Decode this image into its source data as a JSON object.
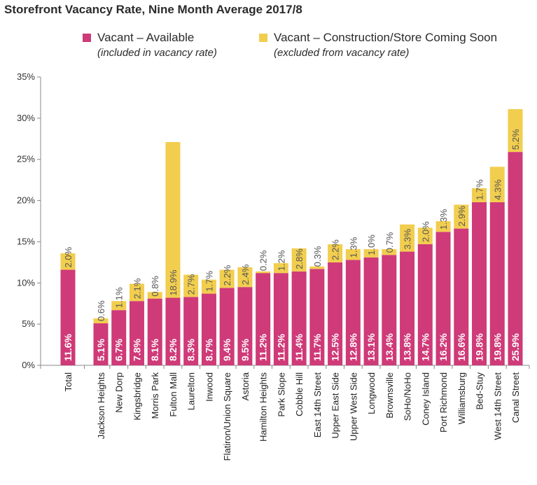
{
  "chart_data": {
    "type": "bar",
    "stacked": true,
    "orientation": "vertical",
    "title": "Storefront Vacancy Rate, Nine Month Average 2017/8",
    "categories": [
      "Total",
      "Jackson Heights",
      "New Dorp",
      "Kingsbridge",
      "Morris Park",
      "Fulton Mall",
      "Laurelton",
      "Inwood",
      "Flatiron/Union Square",
      "Astoria",
      "Hamilton Heights",
      "Park Slope",
      "Cobble Hill",
      "East 14th Street",
      "Upper East Side",
      "Upper West Side",
      "Longwood",
      "Brownsville",
      "SoHo/NoHo",
      "Coney Island",
      "Port Richmond",
      "Williamsburg",
      "Bed-Stuy",
      "West 14th Street",
      "Canal Street"
    ],
    "series": [
      {
        "name": "Vacant – Available",
        "note": "(included in vacancy rate)",
        "color": "#cf3a78",
        "values": [
          11.6,
          5.1,
          6.7,
          7.8,
          8.1,
          8.2,
          8.3,
          8.7,
          9.4,
          9.5,
          11.2,
          11.2,
          11.4,
          11.7,
          12.5,
          12.8,
          13.1,
          13.4,
          13.8,
          14.7,
          16.2,
          16.6,
          19.8,
          19.8,
          25.9
        ],
        "labels": [
          "11.6%",
          "5.1%",
          "6.7%",
          "7.8%",
          "8.1%",
          "8.2%",
          "8.3%",
          "8.7%",
          "9.4%",
          "9.5%",
          "11.2%",
          "11.2%",
          "11.4%",
          "11.7%",
          "12.5%",
          "12.8%",
          "13.1%",
          "13.4%",
          "13.8%",
          "14.7%",
          "16.2%",
          "16.6%",
          "19.8%",
          "19.8%",
          "25.9%"
        ]
      },
      {
        "name": "Vacant – Construction/Store Coming Soon",
        "note": "(excluded from vacancy rate)",
        "color": "#f2ce4f",
        "values": [
          2.0,
          0.6,
          1.1,
          2.1,
          0.8,
          18.9,
          2.7,
          1.7,
          2.2,
          2.4,
          0.2,
          1.2,
          2.8,
          0.3,
          2.2,
          1.3,
          1.0,
          0.7,
          3.3,
          2.0,
          1.3,
          2.9,
          1.7,
          4.3,
          5.2
        ],
        "labels": [
          "2.0%",
          "0.6%",
          "1.1%",
          "2.1%",
          "0.8%",
          "18.9%",
          "2.7%",
          "1.7%",
          "2.2%",
          "2.4%",
          "0.2%",
          "1.2%",
          "2.8%",
          "0.3%",
          "2.2%",
          "1.3%",
          "1.0%",
          "0.7%",
          "3.3%",
          "2.0%",
          "1.3%",
          "2.9%",
          "1.7%",
          "4.3%",
          "5.2%"
        ]
      }
    ],
    "ylim": [
      0,
      35
    ],
    "yticks": [
      0,
      5,
      10,
      15,
      20,
      25,
      30,
      35
    ],
    "ytick_labels": [
      "0%",
      "5%",
      "10%",
      "15%",
      "20%",
      "25%",
      "30%",
      "35%"
    ],
    "legend_position": "top",
    "grid": false
  }
}
